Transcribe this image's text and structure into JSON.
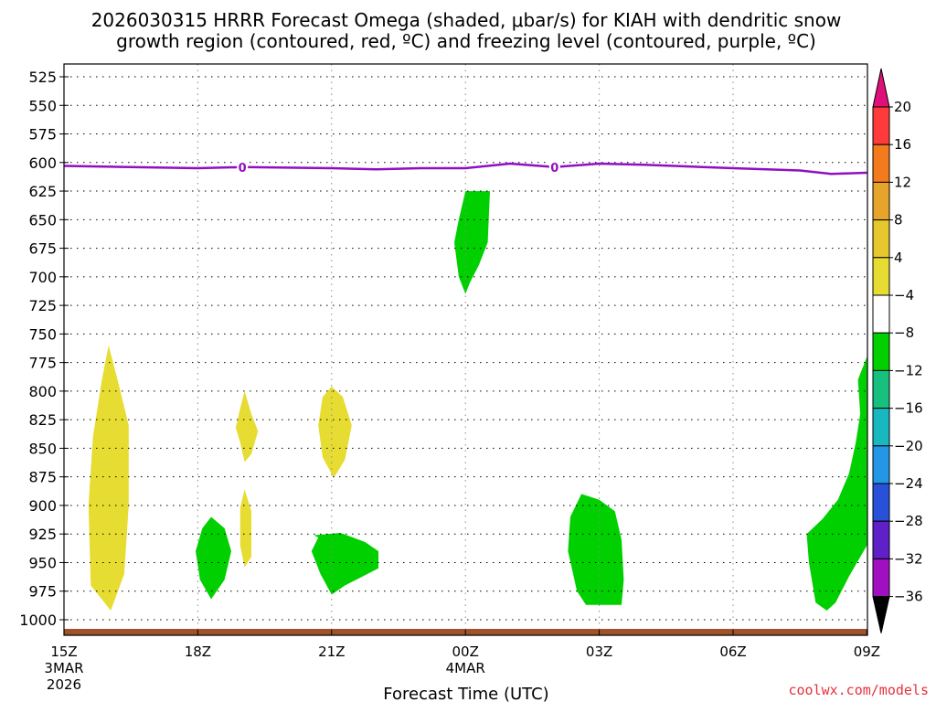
{
  "chart_data": {
    "type": "contour-timeheight",
    "title_line1": "2026030315 HRRR Forecast Omega (shaded, μbar/s) for KIAH with dendritic snow",
    "title_line2": "growth region (contoured, red, ºC) and freezing level (contoured, purple, ºC)",
    "xlabel": "Forecast Time (UTC)",
    "credit": "coolwx.com/models",
    "x_hours": [
      0,
      18
    ],
    "x_ticks": [
      {
        "hour": 0,
        "label": "15Z",
        "sub1": "3MAR",
        "sub2": "2026"
      },
      {
        "hour": 3,
        "label": "18Z"
      },
      {
        "hour": 6,
        "label": "21Z"
      },
      {
        "hour": 9,
        "label": "00Z",
        "sub1": "4MAR"
      },
      {
        "hour": 12,
        "label": "03Z"
      },
      {
        "hour": 15,
        "label": "06Z"
      },
      {
        "hour": 18,
        "label": "09Z"
      }
    ],
    "y_levels": [
      "525",
      "550",
      "575",
      "600",
      "625",
      "650",
      "675",
      "700",
      "725",
      "750",
      "775",
      "800",
      "825",
      "850",
      "875",
      "900",
      "925",
      "950",
      "975",
      "1000"
    ],
    "colorbar": {
      "labels": [
        "20",
        "16",
        "12",
        "8",
        "4",
        "−4",
        "−8",
        "−12",
        "−16",
        "−20",
        "−24",
        "−28",
        "−32",
        "−36"
      ],
      "colors": [
        "#ff3a3a",
        "#f47a1e",
        "#e6a42a",
        "#e6c82e",
        "#e6dc32",
        "#ffffff",
        "#00d000",
        "#18c080",
        "#18b8c0",
        "#2496e6",
        "#2850d8",
        "#6020c8",
        "#a010c0",
        "#a0a0a0"
      ],
      "top_color": "#e0107a",
      "bottom_color": "#000000"
    },
    "freezing_level": {
      "color": "#9010c0",
      "label": "0",
      "points": [
        [
          0,
          603
        ],
        [
          3,
          605
        ],
        [
          4,
          604
        ],
        [
          6,
          605
        ],
        [
          7,
          606
        ],
        [
          8,
          605
        ],
        [
          9,
          605
        ],
        [
          10,
          601
        ],
        [
          11,
          604
        ],
        [
          12,
          601
        ],
        [
          13,
          602
        ],
        [
          15,
          605
        ],
        [
          16.5,
          607
        ],
        [
          17.2,
          610
        ],
        [
          18,
          609
        ]
      ],
      "label_hours": [
        4,
        11
      ]
    },
    "omega_regions": [
      {
        "name": "yellow-plume-1",
        "value": 4,
        "points": [
          [
            1,
            760
          ],
          [
            1.2,
            790
          ],
          [
            1.45,
            830
          ],
          [
            1.45,
            900
          ],
          [
            1.35,
            960
          ],
          [
            1.05,
            992
          ],
          [
            0.6,
            970
          ],
          [
            0.55,
            900
          ],
          [
            0.65,
            840
          ],
          [
            0.85,
            790
          ]
        ]
      },
      {
        "name": "yellow-blob-21z",
        "value": 4,
        "points": [
          [
            6,
            796
          ],
          [
            6.25,
            805
          ],
          [
            6.45,
            830
          ],
          [
            6.3,
            860
          ],
          [
            6.05,
            876
          ],
          [
            5.8,
            858
          ],
          [
            5.7,
            830
          ],
          [
            5.8,
            805
          ]
        ]
      },
      {
        "name": "yellow-blob-04z-upper",
        "value": 4,
        "points": [
          [
            4.05,
            800
          ],
          [
            4.2,
            820
          ],
          [
            4.35,
            835
          ],
          [
            4.2,
            855
          ],
          [
            4.05,
            862
          ],
          [
            3.95,
            845
          ],
          [
            3.85,
            832
          ],
          [
            3.95,
            815
          ]
        ]
      },
      {
        "name": "yellow-blob-04z-lower",
        "value": 4,
        "points": [
          [
            4.05,
            886
          ],
          [
            4.2,
            905
          ],
          [
            4.2,
            945
          ],
          [
            4.05,
            954
          ],
          [
            3.95,
            935
          ],
          [
            3.95,
            902
          ]
        ]
      },
      {
        "name": "green-upper-00z",
        "value": -8,
        "points": [
          [
            9,
            625
          ],
          [
            9.55,
            625
          ],
          [
            9.5,
            670
          ],
          [
            9.3,
            690
          ],
          [
            9.1,
            705
          ],
          [
            9.0,
            715
          ],
          [
            8.85,
            700
          ],
          [
            8.75,
            670
          ],
          [
            8.85,
            650
          ]
        ]
      },
      {
        "name": "green-1730z",
        "value": -8,
        "points": [
          [
            3.3,
            910
          ],
          [
            3.6,
            920
          ],
          [
            3.75,
            940
          ],
          [
            3.6,
            965
          ],
          [
            3.3,
            982
          ],
          [
            3.05,
            965
          ],
          [
            2.95,
            940
          ],
          [
            3.1,
            920
          ]
        ]
      },
      {
        "name": "green-21z",
        "value": -8,
        "points": [
          [
            5.6,
            926
          ],
          [
            6.2,
            924
          ],
          [
            6.75,
            932
          ],
          [
            7.05,
            940
          ],
          [
            7.05,
            955
          ],
          [
            6.7,
            962
          ],
          [
            6.3,
            970
          ],
          [
            6.0,
            978
          ],
          [
            5.75,
            960
          ],
          [
            5.55,
            940
          ],
          [
            5.7,
            928
          ]
        ]
      },
      {
        "name": "green-02z",
        "value": -8,
        "points": [
          [
            11.6,
            890
          ],
          [
            12.0,
            895
          ],
          [
            12.35,
            905
          ],
          [
            12.5,
            930
          ],
          [
            12.55,
            965
          ],
          [
            12.5,
            987
          ],
          [
            11.7,
            987
          ],
          [
            11.5,
            975
          ],
          [
            11.3,
            940
          ],
          [
            11.35,
            910
          ]
        ]
      },
      {
        "name": "green-08z",
        "value": -8,
        "points": [
          [
            18,
            770
          ],
          [
            18,
            935
          ],
          [
            17.6,
            962
          ],
          [
            17.3,
            985
          ],
          [
            17.1,
            992
          ],
          [
            16.85,
            985
          ],
          [
            16.7,
            950
          ],
          [
            16.65,
            925
          ],
          [
            17.0,
            912
          ],
          [
            17.35,
            895
          ],
          [
            17.6,
            872
          ],
          [
            17.75,
            845
          ],
          [
            17.85,
            820
          ],
          [
            17.8,
            790
          ]
        ]
      }
    ]
  }
}
